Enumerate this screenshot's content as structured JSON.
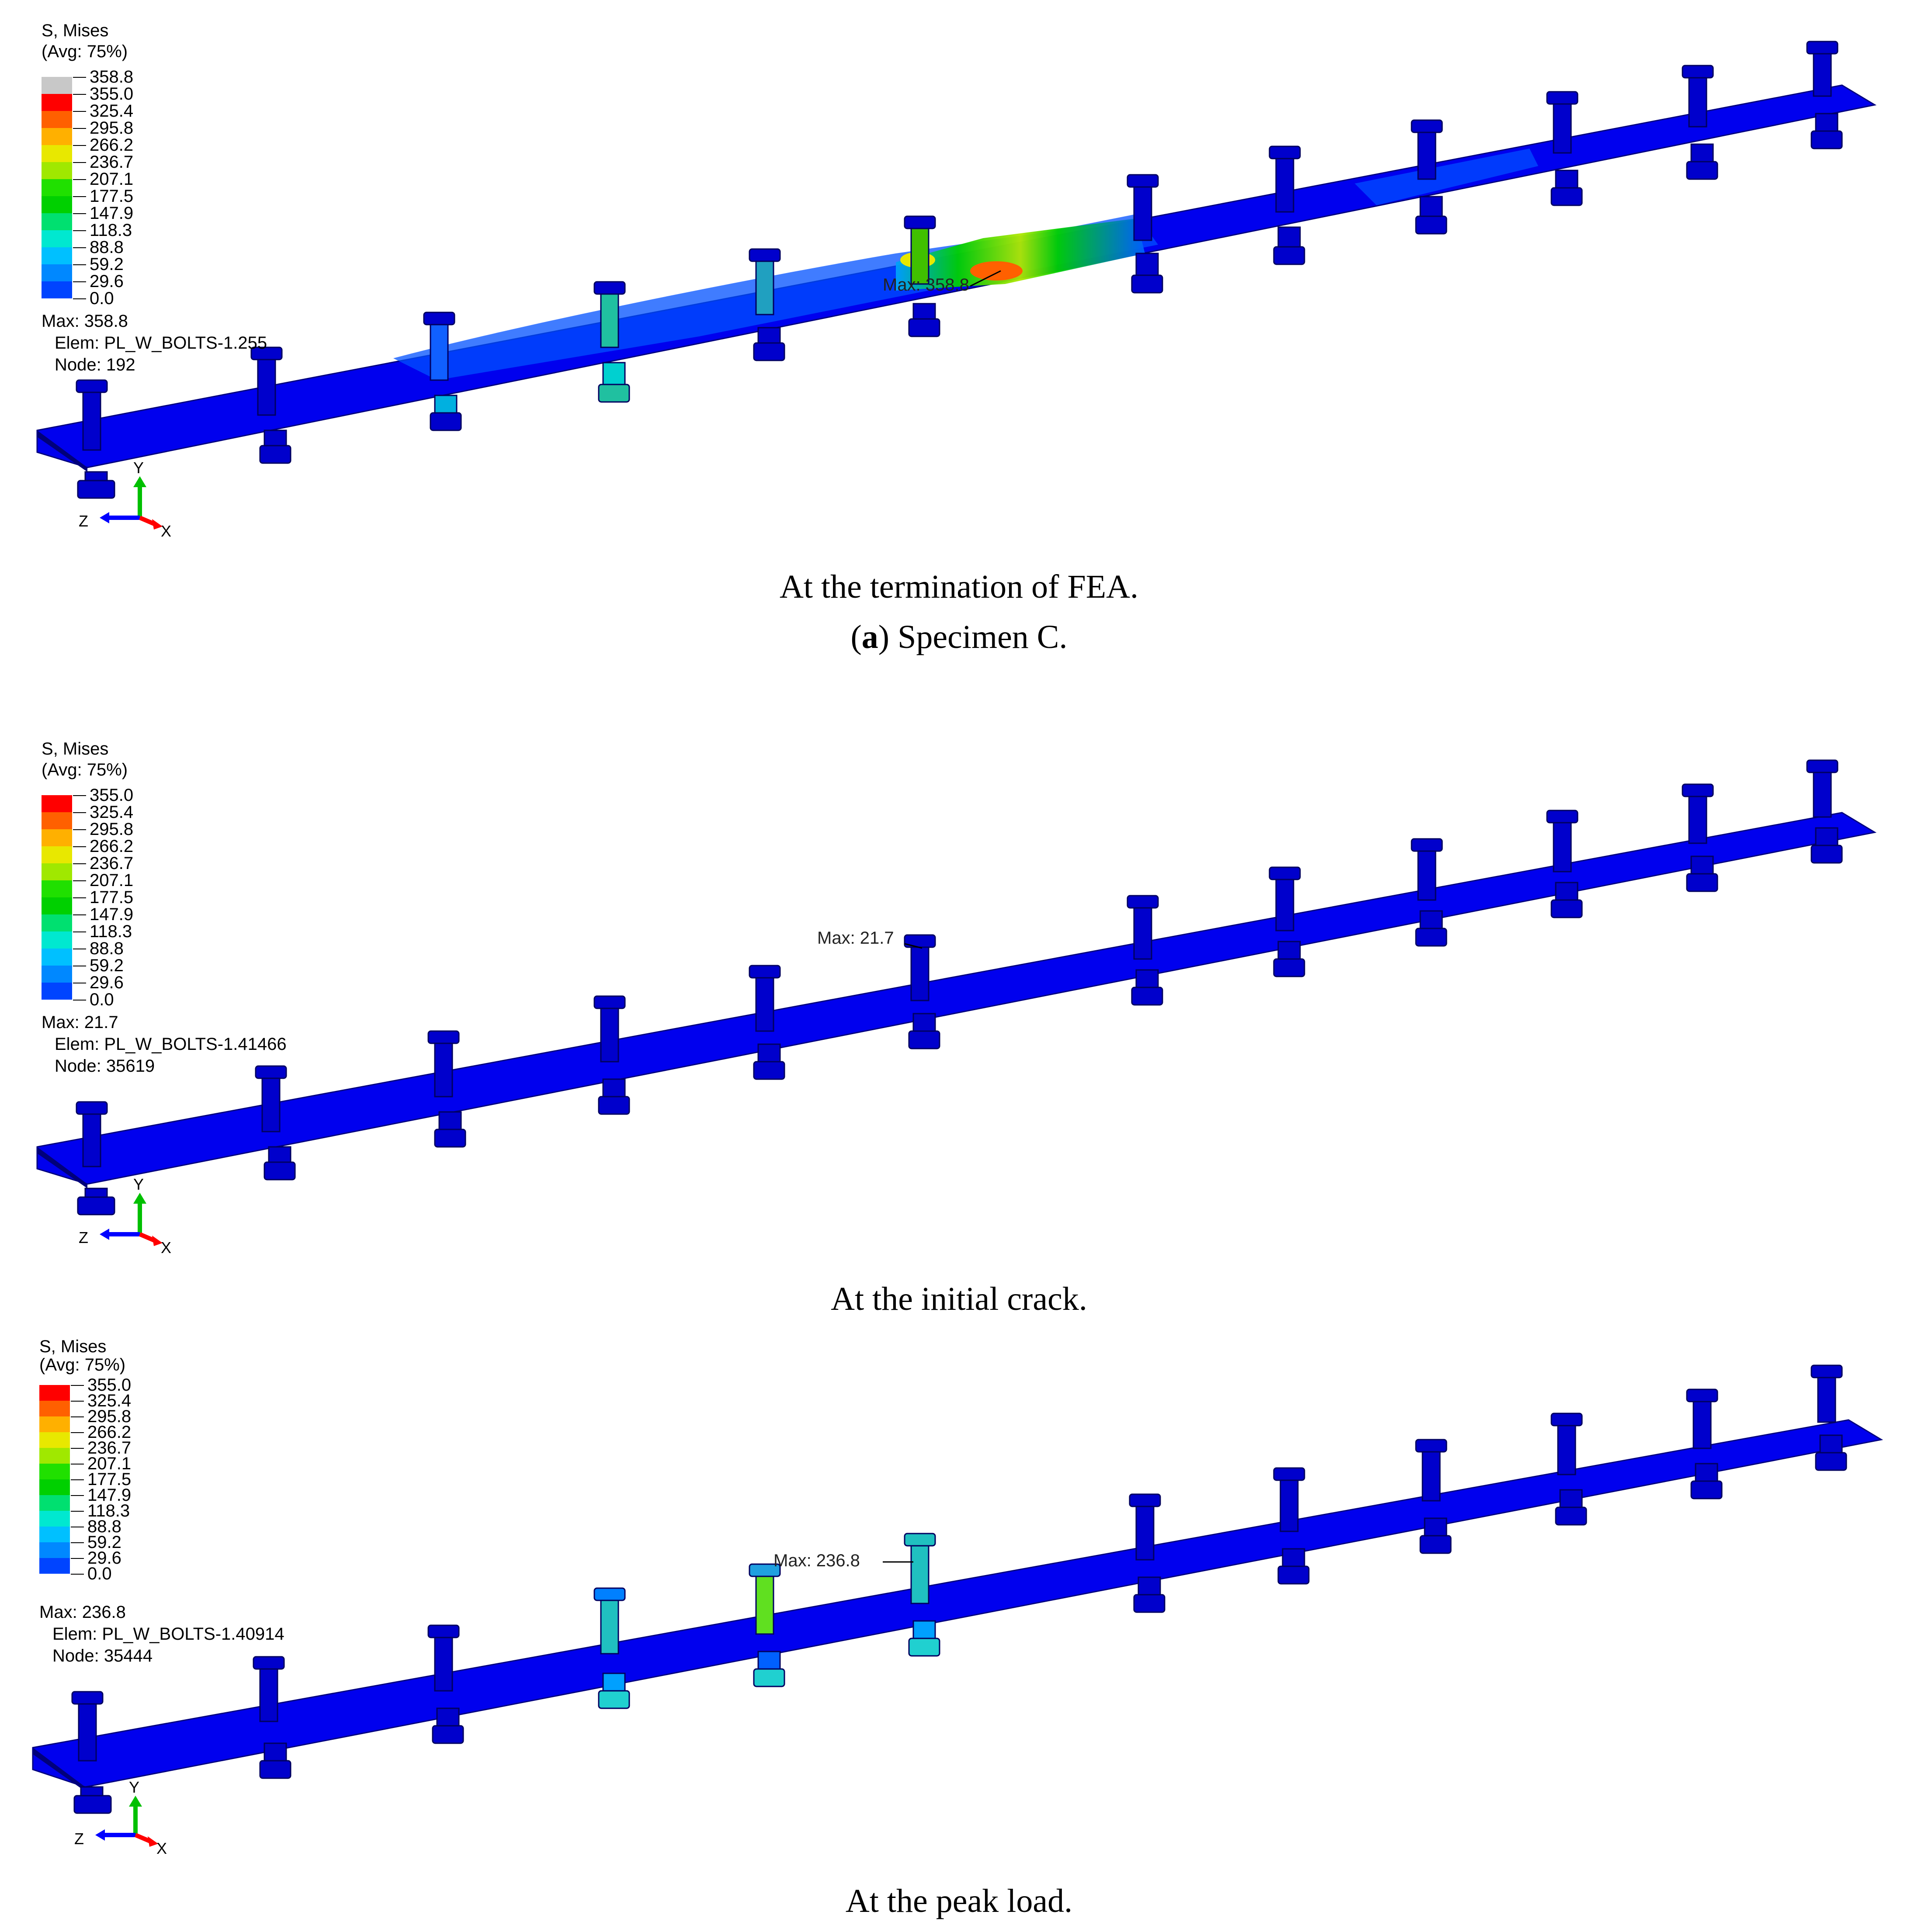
{
  "legend_colors": [
    "#0000ff",
    "#0044ff",
    "#0088ff",
    "#00c0ff",
    "#00e8d0",
    "#00e070",
    "#00d000",
    "#20e000",
    "#a0e800",
    "#e8e800",
    "#ffb000",
    "#ff6000",
    "#ff0000",
    "#c8c8c8"
  ],
  "panels": [
    {
      "legend": {
        "title": "S, Mises",
        "avg": "(Avg: 75%)",
        "values": [
          "358.8",
          "355.0",
          "325.4",
          "295.8",
          "266.2",
          "236.7",
          "207.1",
          "177.5",
          "147.9",
          "118.3",
          "88.8",
          "59.2",
          "29.6",
          "0.0"
        ]
      },
      "info": {
        "max": "Max: 358.8",
        "elem": "Elem: PL_W_BOLTS-1.255",
        "node": "Node: 192"
      },
      "max_label": "Max: 358.8",
      "triad": {
        "y": "Y",
        "z": "Z",
        "x": "X"
      },
      "caption": "At the termination of FEA."
    },
    {
      "legend": {
        "title": "S, Mises",
        "avg": "(Avg: 75%)",
        "values": [
          "355.0",
          "325.4",
          "295.8",
          "266.2",
          "236.7",
          "207.1",
          "177.5",
          "147.9",
          "118.3",
          "88.8",
          "59.2",
          "29.6",
          "0.0"
        ]
      },
      "info": {
        "max": "Max: 21.7",
        "elem": "Elem: PL_W_BOLTS-1.41466",
        "node": "Node: 35619"
      },
      "max_label": "Max: 21.7",
      "triad": {
        "y": "Y",
        "z": "Z",
        "x": "X"
      },
      "caption": "At the initial crack."
    },
    {
      "legend": {
        "title": "S, Mises",
        "avg": "(Avg: 75%)",
        "values": [
          "355.0",
          "325.4",
          "295.8",
          "266.2",
          "236.7",
          "207.1",
          "177.5",
          "147.9",
          "118.3",
          "88.8",
          "59.2",
          "29.6",
          "0.0"
        ]
      },
      "info": {
        "max": "Max: 236.8",
        "elem": "Elem: PL_W_BOLTS-1.40914",
        "node": "Node: 35444"
      },
      "max_label": "Max: 236.8",
      "triad": {
        "y": "Y",
        "z": "Z",
        "x": "X"
      },
      "caption": "At the peak load."
    }
  ],
  "subcaption": {
    "letter": "a",
    "text": " Specimen C."
  }
}
